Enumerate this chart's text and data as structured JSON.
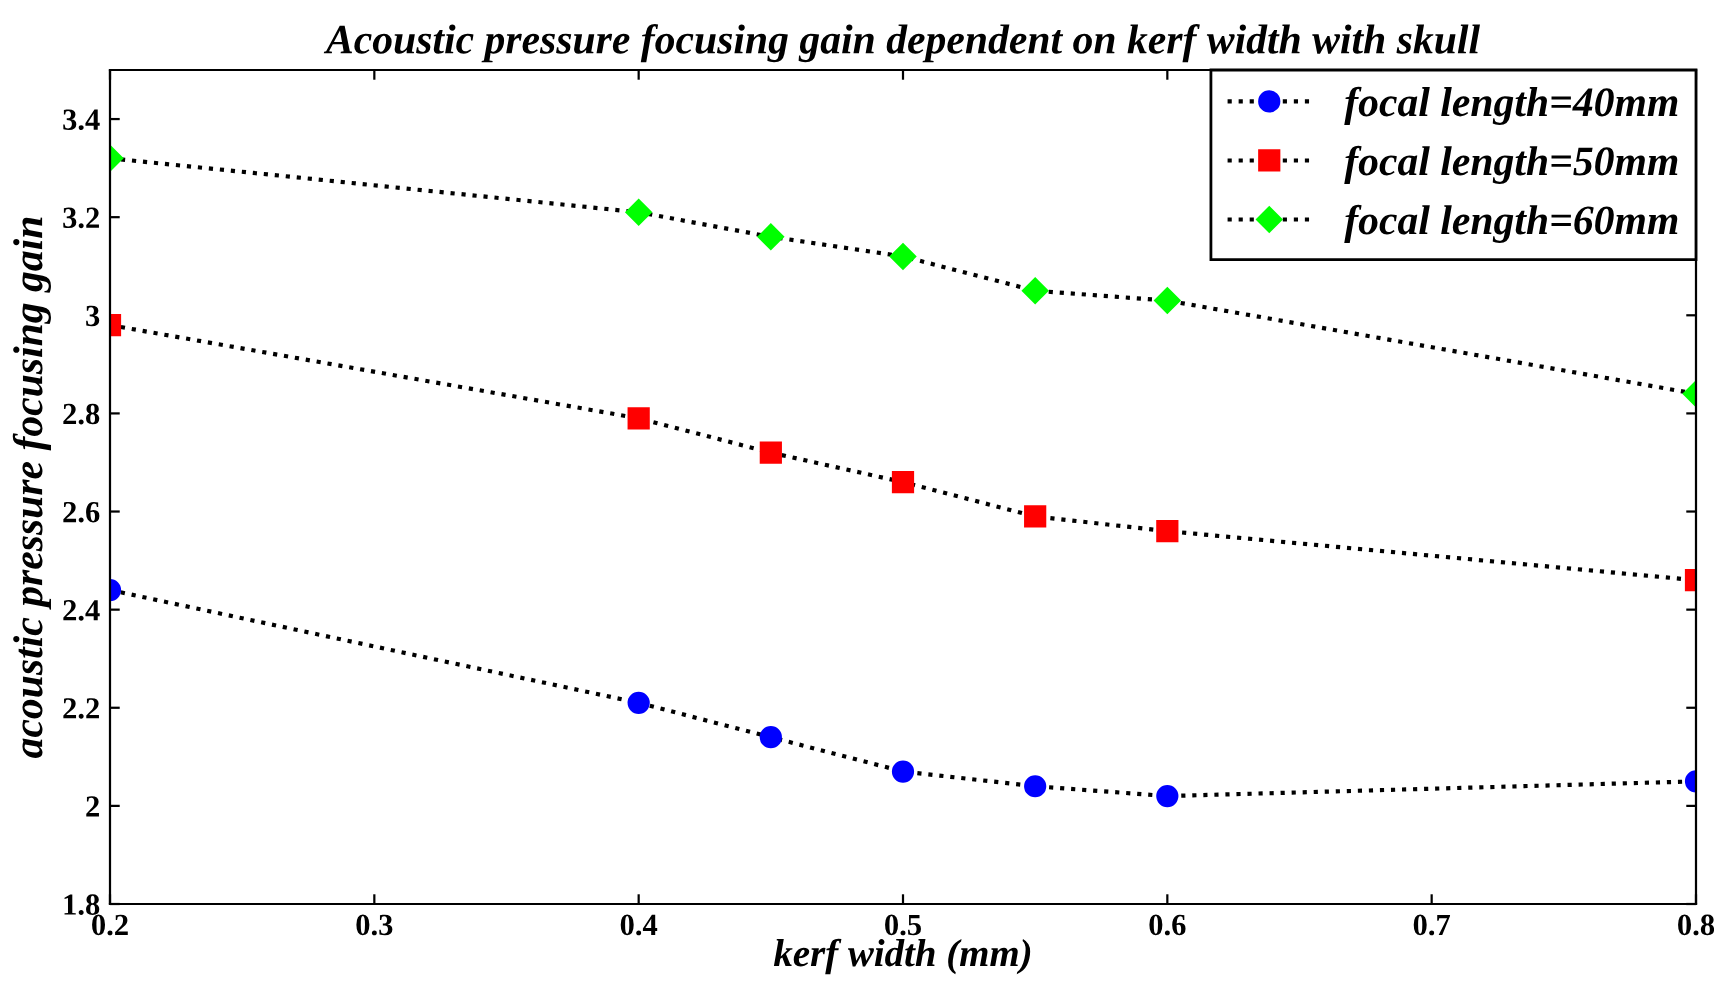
{
  "chart_data": {
    "type": "line",
    "title": "Acoustic pressure focusing gain dependent on kerf width with skull",
    "xlabel": "kerf width (mm)",
    "ylabel": "acoustic pressure focusing gain",
    "x": [
      0.2,
      0.4,
      0.45,
      0.5,
      0.55,
      0.6,
      0.8
    ],
    "series": [
      {
        "name": "focal length=40mm",
        "color": "#0000ff",
        "marker": "circle",
        "values": [
          2.44,
          2.21,
          2.14,
          2.07,
          2.04,
          2.02,
          2.05
        ]
      },
      {
        "name": "focal length=50mm",
        "color": "#ff0000",
        "marker": "square",
        "values": [
          2.98,
          2.79,
          2.72,
          2.66,
          2.59,
          2.56,
          2.46
        ]
      },
      {
        "name": "focal length=60mm",
        "color": "#00ff00",
        "marker": "diamond",
        "values": [
          3.32,
          3.21,
          3.16,
          3.12,
          3.05,
          3.03,
          2.84
        ]
      }
    ],
    "line_style": "dotted",
    "xlim": [
      0.2,
      0.8
    ],
    "ylim": [
      1.8,
      3.5
    ],
    "xticks": [
      0.2,
      0.3,
      0.4,
      0.5,
      0.6,
      0.7,
      0.8
    ],
    "yticks": [
      1.8,
      2,
      2.2,
      2.4,
      2.6,
      2.8,
      3,
      3.2,
      3.4
    ],
    "grid": false,
    "legend": "top right"
  }
}
